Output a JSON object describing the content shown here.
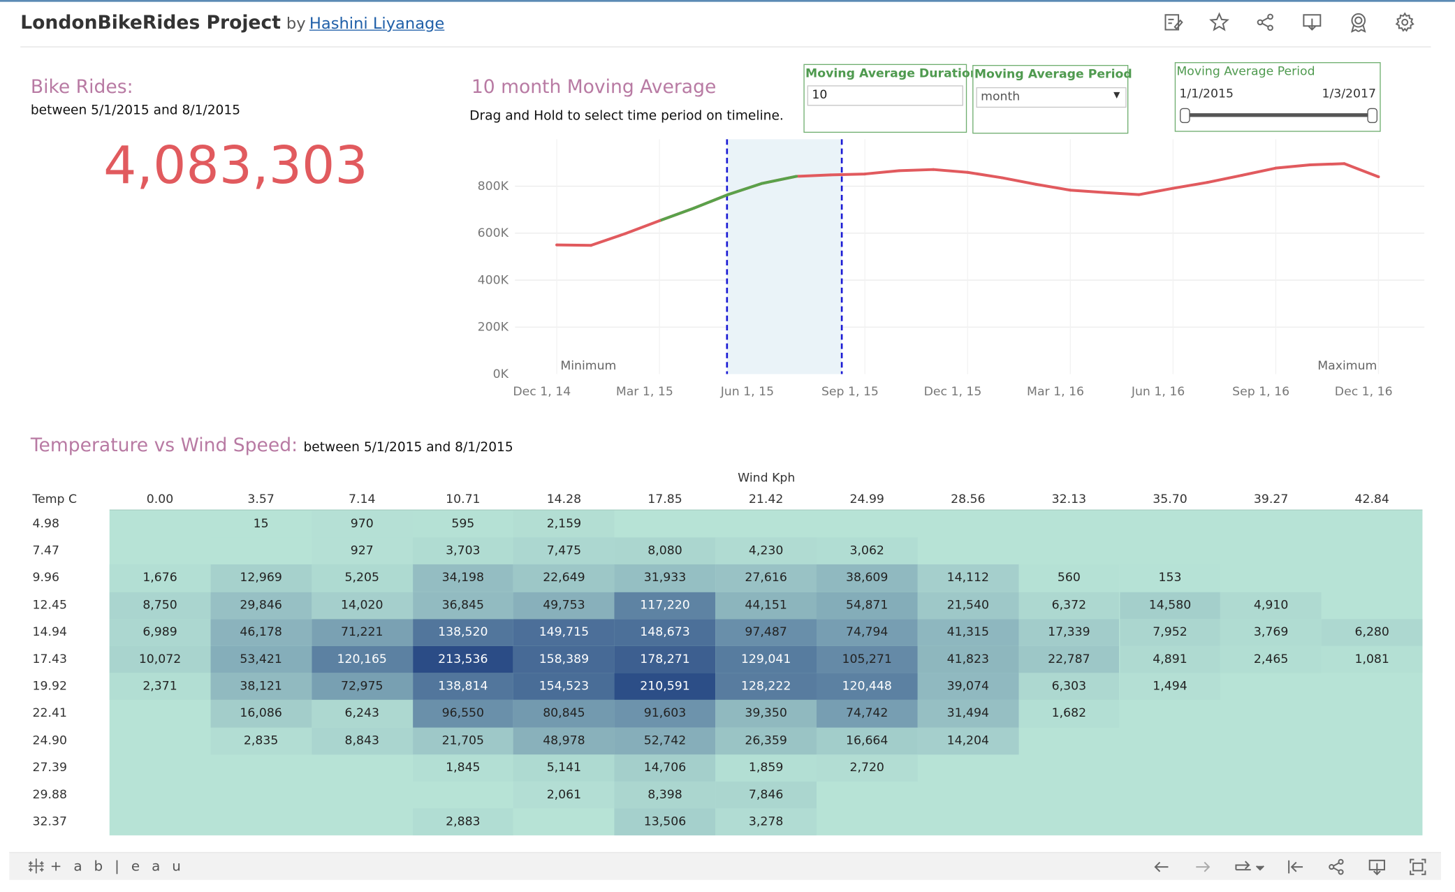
{
  "header": {
    "title": "LondonBikeRides Project",
    "by": "by",
    "author": "Hashini Liyanage",
    "icons": [
      "edit-icon",
      "star-icon",
      "share-icon",
      "download-icon",
      "badge-icon",
      "settings-icon"
    ]
  },
  "bike_rides": {
    "title": "Bike Rides:",
    "subtitle": "between 5/1/2015 and 8/1/2015",
    "total": "4,083,303"
  },
  "moving_avg": {
    "title": "10 month Moving Average",
    "instruction": "Drag and Hold to select time period on timeline.",
    "min_label": "Minimum",
    "max_label": "Maximum"
  },
  "controls": {
    "duration": {
      "title": "Moving Average Duration",
      "value": "10"
    },
    "period": {
      "title": "Moving Average Period",
      "selected": "month"
    },
    "range": {
      "title": "Moving Average Period",
      "start": "1/1/2015",
      "end": "1/3/2017",
      "range_fraction": [
        0,
        1
      ]
    }
  },
  "chart_data": {
    "type": "line",
    "title": "10 month Moving Average",
    "x_ticks": [
      "Dec 1, 14",
      "Mar 1, 15",
      "Jun 1, 15",
      "Sep 1, 15",
      "Dec 1, 15",
      "Mar 1, 16",
      "Jun 1, 16",
      "Sep 1, 16",
      "Dec 1, 16"
    ],
    "y_ticks": [
      "0K",
      "200K",
      "400K",
      "600K",
      "800K"
    ],
    "ylim": [
      0,
      1000000
    ],
    "x": [
      "2015-01",
      "2015-02",
      "2015-03",
      "2015-04",
      "2015-05",
      "2015-06",
      "2015-07",
      "2015-08",
      "2015-09",
      "2015-10",
      "2015-11",
      "2015-12",
      "2016-01",
      "2016-02",
      "2016-03",
      "2016-04",
      "2016-05",
      "2016-06",
      "2016-07",
      "2016-08",
      "2016-09",
      "2016-10",
      "2016-11",
      "2016-12",
      "2017-01"
    ],
    "values": [
      550000,
      548000,
      598000,
      653000,
      706000,
      764000,
      812000,
      842000,
      848000,
      852000,
      866000,
      871000,
      859000,
      836000,
      808000,
      783000,
      773000,
      764000,
      791000,
      816000,
      846000,
      877000,
      891000,
      896000,
      840000
    ],
    "highlight": {
      "start": "2015-05",
      "end": "2015-08"
    },
    "colors": {
      "line": "#e15a5e",
      "highlight_line": "#5aa14a",
      "band": "#eaf3f8",
      "band_edge": "#1a1ad4"
    }
  },
  "heatmap": {
    "title": "Temperature vs Wind Speed:",
    "subtitle": "between 5/1/2015 and 8/1/2015",
    "x_title": "Wind Kph",
    "y_title": "Temp C",
    "cols": [
      "0.00",
      "3.57",
      "7.14",
      "10.71",
      "14.28",
      "17.85",
      "21.42",
      "24.99",
      "28.56",
      "32.13",
      "35.70",
      "39.27",
      "42.84"
    ],
    "rows": [
      {
        "temp": "4.98",
        "vals": [
          null,
          15,
          970,
          595,
          2159,
          null,
          null,
          null,
          null,
          null,
          null,
          null,
          null
        ]
      },
      {
        "temp": "7.47",
        "vals": [
          null,
          null,
          927,
          3703,
          7475,
          8080,
          4230,
          3062,
          null,
          null,
          null,
          null,
          null
        ]
      },
      {
        "temp": "9.96",
        "vals": [
          1676,
          12969,
          5205,
          34198,
          22649,
          31933,
          27616,
          38609,
          14112,
          560,
          153,
          null,
          null
        ]
      },
      {
        "temp": "12.45",
        "vals": [
          8750,
          29846,
          14020,
          36845,
          49753,
          117220,
          44151,
          54871,
          21540,
          6372,
          14580,
          4910,
          null
        ]
      },
      {
        "temp": "14.94",
        "vals": [
          6989,
          46178,
          71221,
          138520,
          149715,
          148673,
          97487,
          74794,
          41315,
          17339,
          7952,
          3769,
          6280
        ]
      },
      {
        "temp": "17.43",
        "vals": [
          10072,
          53421,
          120165,
          213536,
          158389,
          178271,
          129041,
          105271,
          41823,
          22787,
          4891,
          2465,
          1081
        ]
      },
      {
        "temp": "19.92",
        "vals": [
          2371,
          38121,
          72975,
          138814,
          154523,
          210591,
          128222,
          120448,
          39074,
          6303,
          1494,
          null,
          null
        ]
      },
      {
        "temp": "22.41",
        "vals": [
          null,
          16086,
          6243,
          96550,
          80845,
          91603,
          39350,
          74742,
          31494,
          1682,
          null,
          null,
          null
        ]
      },
      {
        "temp": "24.90",
        "vals": [
          null,
          2835,
          8843,
          21705,
          48978,
          52742,
          26359,
          16664,
          14204,
          null,
          null,
          null,
          null
        ]
      },
      {
        "temp": "27.39",
        "vals": [
          null,
          null,
          null,
          1845,
          5141,
          14706,
          1859,
          2720,
          null,
          null,
          null,
          null,
          null
        ]
      },
      {
        "temp": "29.88",
        "vals": [
          null,
          null,
          null,
          null,
          2061,
          8398,
          7846,
          null,
          null,
          null,
          null,
          null,
          null
        ]
      },
      {
        "temp": "32.37",
        "vals": [
          null,
          null,
          null,
          2883,
          null,
          13506,
          3278,
          null,
          null,
          null,
          null,
          null,
          null
        ]
      }
    ],
    "colors": {
      "low": "#b7e3d6",
      "high": "#2b4c86"
    }
  },
  "footer": {
    "logo_text": "+ a b | e a u",
    "icons": [
      "undo-icon",
      "redo-icon",
      "revert-icon",
      "reset-icon",
      "share-icon",
      "download-icon",
      "fullscreen-icon"
    ]
  }
}
